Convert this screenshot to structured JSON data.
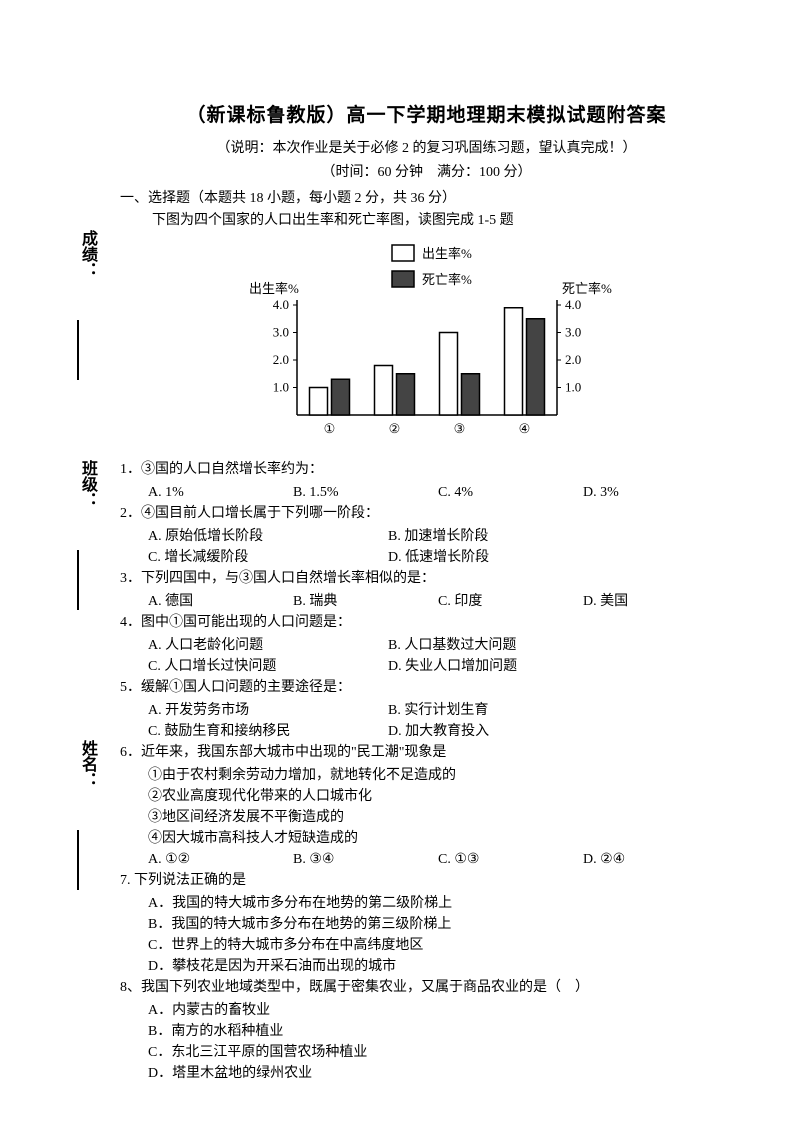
{
  "side": {
    "score": "成绩：",
    "class": "班级：",
    "name": "姓名："
  },
  "title": "（新课标鲁教版）高一下学期地理期末模拟试题附答案",
  "subtitle": "（说明：本次作业是关于必修 2 的复习巩固练习题，望认真完成！）",
  "timing": "（时间：60 分钟　满分：100 分）",
  "section": "一、选择题（本题共 18 小题，每小题 2 分，共 36 分）",
  "sectionSub": "下图为四个国家的人口出生率和死亡率图，读图完成 1-5 题",
  "chart": {
    "type": "bar",
    "leftAxisLabel": "出生率%",
    "rightAxisLabel": "死亡率%",
    "legend": {
      "birth": "出生率%",
      "death": "死亡率%"
    },
    "categories": [
      "①",
      "②",
      "③",
      "④"
    ],
    "yticks": [
      "1.0",
      "2.0",
      "3.0",
      "4.0"
    ],
    "yticksR": [
      "1.0",
      "2.0",
      "3.0",
      "4.0"
    ],
    "ymax": 4.0,
    "birth": [
      1.0,
      1.8,
      3.0,
      3.9
    ],
    "death": [
      1.3,
      1.5,
      1.5,
      3.5
    ],
    "birthFill": "#ffffff",
    "deathFill": "#444444",
    "stroke": "#000000",
    "axisColor": "#000000",
    "fontSize": 13
  },
  "q1": {
    "text": "1．③国的人口自然增长率约为：",
    "A": "A. 1%",
    "B": "B. 1.5%",
    "C": "C. 4%",
    "D": "D. 3%"
  },
  "q2": {
    "text": "2．④国目前人口增长属于下列哪一阶段：",
    "A": "A. 原始低增长阶段",
    "B": "B. 加速增长阶段",
    "C": "C. 增长减缓阶段",
    "D": "D. 低速增长阶段"
  },
  "q3": {
    "text": "3．下列四国中，与③国人口自然增长率相似的是：",
    "A": "A. 德国",
    "B": "B. 瑞典",
    "C": "C. 印度",
    "D": "D. 美国"
  },
  "q4": {
    "text": "4．图中①国可能出现的人口问题是：",
    "A": "A. 人口老龄化问题",
    "B": "B. 人口基数过大问题",
    "C": "C. 人口增长过快问题",
    "D": "D. 失业人口增加问题"
  },
  "q5": {
    "text": "5．缓解①国人口问题的主要途径是：",
    "A": "A. 开发劳务市场",
    "B": "B. 实行计划生育",
    "C": "C. 鼓励生育和接纳移民",
    "D": "D. 加大教育投入"
  },
  "q6": {
    "text": "6．近年来，我国东部大城市中出现的\"民工潮\"现象是",
    "s1": "①由于农村剩余劳动力增加，就地转化不足造成的",
    "s2": "②农业高度现代化带来的人口城市化",
    "s3": "③地区间经济发展不平衡造成的",
    "s4": "④因大城市高科技人才短缺造成的",
    "A": "A. ①②",
    "B": "B. ③④",
    "C": "C. ①③",
    "D": "D. ②④"
  },
  "q7": {
    "text": "7. 下列说法正确的是",
    "A": "A．我国的特大城市多分布在地势的第二级阶梯上",
    "B": "B．我国的特大城市多分布在地势的第三级阶梯上",
    "C": "C．世界上的特大城市多分布在中高纬度地区",
    "D": "D．攀枝花是因为开采石油而出现的城市"
  },
  "q8": {
    "text": "8、我国下列农业地域类型中，既属于密集农业，又属于商品农业的是（　）",
    "A": "A．内蒙古的畜牧业",
    "B": "B．南方的水稻种植业",
    "C": "C．东北三江平原的国营农场种植业",
    "D": "D．塔里木盆地的绿州农业"
  }
}
